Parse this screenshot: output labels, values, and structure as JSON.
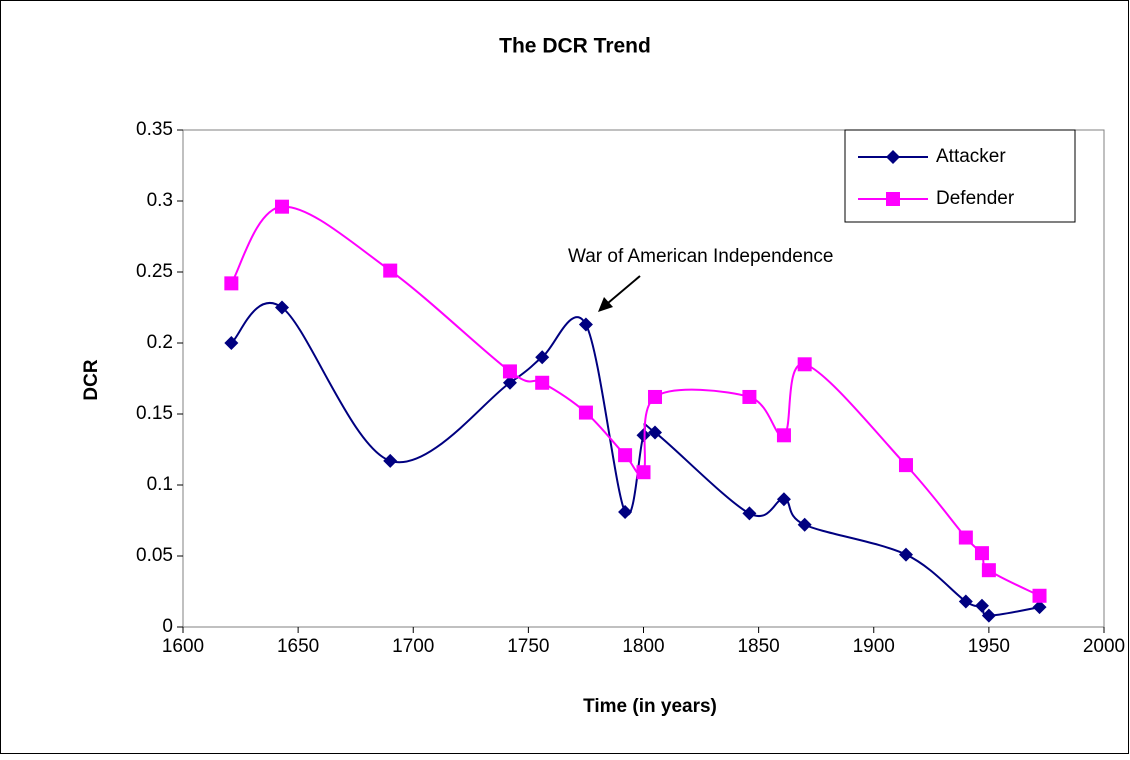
{
  "chart_data": {
    "type": "line",
    "title": "The DCR Trend",
    "x_label": "Time (in years)",
    "y_label": "DCR",
    "x": [
      1621,
      1643,
      1690,
      1742,
      1756,
      1775,
      1792,
      1800,
      1805,
      1846,
      1861,
      1870,
      1914,
      1940,
      1947,
      1950,
      1972
    ],
    "series": [
      {
        "name": "Attacker",
        "color": "#000080",
        "marker": "diamond",
        "values": [
          0.2,
          0.225,
          0.117,
          0.172,
          0.19,
          0.213,
          0.081,
          0.135,
          0.137,
          0.08,
          0.09,
          0.072,
          0.051,
          0.018,
          0.015,
          0.008,
          0.014
        ]
      },
      {
        "name": "Defender",
        "color": "#ff00ff",
        "marker": "square",
        "values": [
          0.242,
          0.296,
          0.251,
          0.18,
          0.172,
          0.151,
          0.121,
          0.109,
          0.162,
          0.162,
          0.135,
          0.185,
          0.114,
          0.063,
          0.052,
          0.04,
          0.022
        ]
      }
    ],
    "xlim": [
      1600,
      2000
    ],
    "xticks": [
      1600,
      1650,
      1700,
      1750,
      1800,
      1850,
      1900,
      1950,
      2000
    ],
    "ylim": [
      0,
      0.35
    ],
    "yticks": [
      0,
      0.05,
      0.1,
      0.15,
      0.2,
      0.25,
      0.3,
      0.35
    ],
    "legend": "top-right",
    "smooth": true,
    "annotations": [
      "War of American Independence"
    ]
  }
}
